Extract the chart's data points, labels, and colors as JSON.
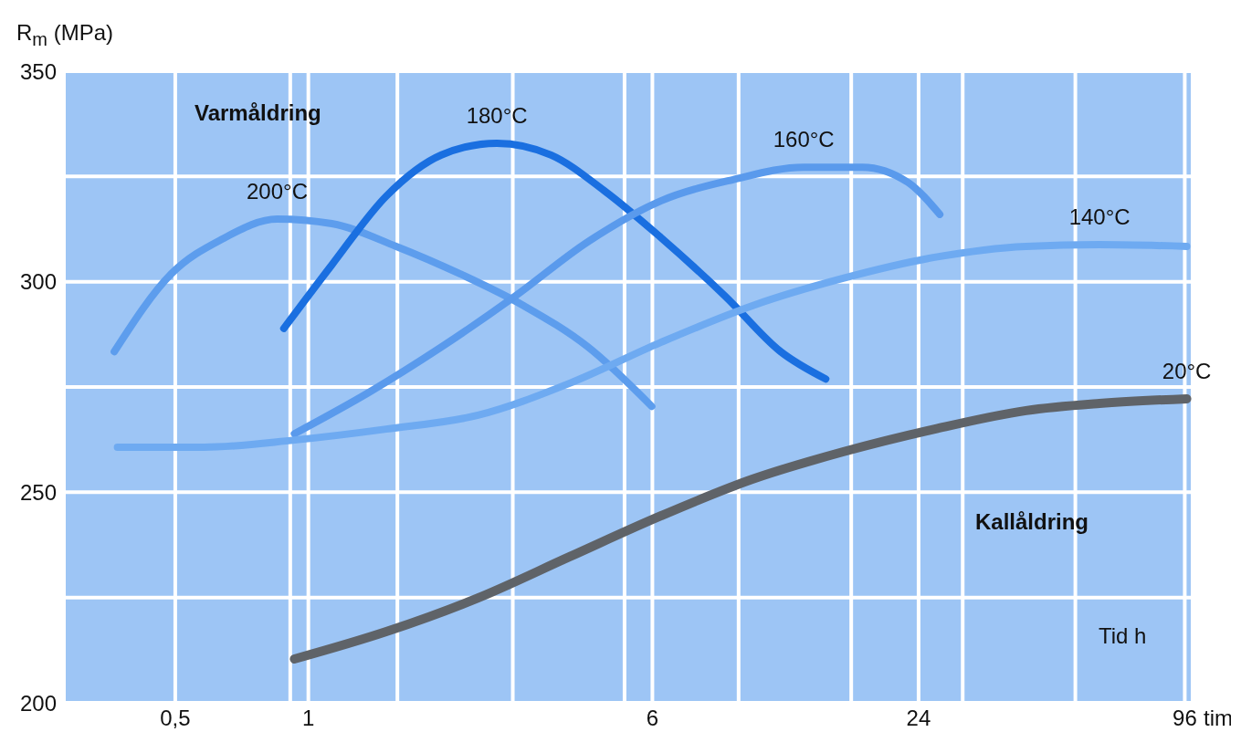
{
  "chart_data": {
    "type": "line",
    "ylabel": "R$_{m}$ (MPa)",
    "xlabel": "tim",
    "log": "x",
    "grid": true,
    "legend": false,
    "marker": "none",
    "line_style": "solid",
    "xlim": [
      0.28,
      100
    ],
    "xticks": [
      {
        "value": 0.5,
        "label": "0,5"
      },
      {
        "value": 0.91,
        "label": null
      },
      1,
      {
        "value": 1.59,
        "label": null
      },
      {
        "value": 2.9,
        "label": null
      },
      {
        "value": 5.19,
        "label": null
      },
      6,
      {
        "value": 9.4,
        "label": null
      },
      {
        "value": 16.9,
        "label": null
      },
      24,
      {
        "value": 30.2,
        "label": null
      },
      {
        "value": 54.3,
        "label": null
      },
      96
    ],
    "ylim": [
      200,
      350
    ],
    "yticks": [
      200,
      {
        "value": 225,
        "label": null
      },
      250,
      {
        "value": 275,
        "label": null
      },
      300,
      {
        "value": 325,
        "label": null
      },
      350
    ],
    "annotations": [
      "Varmåldring",
      "Kallåldring",
      "Tid h"
    ],
    "series": [
      {
        "name": "200°C",
        "color": "#5d9ded",
        "x": [
          0.364,
          0.49,
          0.638,
          0.85,
          1.13,
          1.58,
          2.2,
          3.07,
          4.29,
          5.98
        ],
        "values": [
          283.4,
          301.9,
          310.1,
          314.9,
          313.8,
          308.4,
          301.9,
          294.3,
          284.5,
          270.4
        ]
      },
      {
        "name": "180°C",
        "color": "#1a6fe0",
        "x": [
          0.88,
          1.13,
          1.5,
          2.0,
          2.67,
          3.54,
          4.7,
          6.27,
          8.78,
          11.7,
          14.8
        ],
        "values": [
          288.9,
          304.0,
          320.3,
          330.1,
          332.9,
          330.1,
          321.4,
          310.5,
          296.5,
          283.4,
          276.9
        ]
      },
      {
        "name": "160°C",
        "color": "#5a9aec",
        "x": [
          0.93,
          1.37,
          2.0,
          2.93,
          4.29,
          6.27,
          9.1,
          13.2,
          17.9,
          22.7,
          26.8
        ],
        "values": [
          263.9,
          273.7,
          284.5,
          296.5,
          309.5,
          319.2,
          324.2,
          327.2,
          327.2,
          323.6,
          316.0
        ]
      },
      {
        "name": "140°C",
        "color": "#6eaaf1",
        "x": [
          0.37,
          0.58,
          0.93,
          1.5,
          2.42,
          3.9,
          6.27,
          10.1,
          16.2,
          26.1,
          42,
          61.6,
          97
        ],
        "values": [
          260.7,
          260.7,
          262.4,
          265.0,
          268.3,
          275.9,
          285.6,
          294.3,
          300.8,
          305.8,
          308.4,
          308.8,
          308.4
        ]
      },
      {
        "name": "20°C",
        "color": "#5f6368",
        "x": [
          0.93,
          1.5,
          2.42,
          3.9,
          6.27,
          10.1,
          16.2,
          26.1,
          42,
          61.6,
          97
        ],
        "values": [
          210.4,
          216.9,
          224.9,
          234.7,
          244.4,
          253.1,
          259.6,
          265.0,
          269.4,
          271.1,
          272.2
        ]
      }
    ]
  }
}
